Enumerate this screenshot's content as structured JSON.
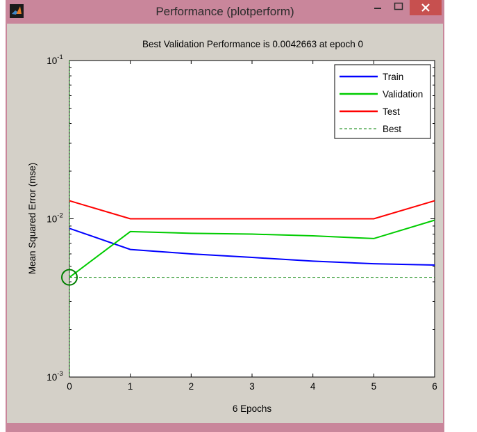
{
  "window": {
    "title": "Performance (plotperform)",
    "icon": "matlab-logo-icon",
    "controls": [
      "minimize-icon",
      "maximize-icon",
      "close-icon"
    ]
  },
  "colors": {
    "titlebar": "#c9869b",
    "close_button": "#c7504f",
    "figure_background": "#d4d0c8",
    "axes_background": "#ffffff"
  },
  "chart_data": {
    "type": "line",
    "title": "Best Validation Performance is 0.0042663 at epoch 0",
    "xlabel": "6 Epochs",
    "ylabel": "Mean Squared Error  (mse)",
    "xlim": [
      0,
      6
    ],
    "ylim": [
      0.001,
      0.1
    ],
    "yscale": "log",
    "x_ticks": [
      "0",
      "1",
      "2",
      "3",
      "4",
      "5",
      "6"
    ],
    "y_ticks": [
      {
        "base": "10",
        "exp": "-3",
        "value": 0.001
      },
      {
        "base": "10",
        "exp": "-2",
        "value": 0.01
      },
      {
        "base": "10",
        "exp": "-1",
        "value": 0.1
      }
    ],
    "grid": false,
    "legend_position": "top-right",
    "x": [
      0,
      1,
      2,
      3,
      4,
      5,
      6
    ],
    "series": [
      {
        "name": "Train",
        "color": "#0000ff",
        "style": "solid",
        "values": [
          0.0087,
          0.0064,
          0.006,
          0.0057,
          0.0054,
          0.0052,
          0.0051
        ]
      },
      {
        "name": "Validation",
        "color": "#00cc00",
        "style": "solid",
        "values": [
          0.0042663,
          0.0083,
          0.0081,
          0.008,
          0.0078,
          0.0075,
          0.0098
        ]
      },
      {
        "name": "Test",
        "color": "#ff0000",
        "style": "solid",
        "values": [
          0.013,
          0.01,
          0.01,
          0.01,
          0.01,
          0.01,
          0.013
        ]
      },
      {
        "name": "Best",
        "color": "#008000",
        "style": "dashed",
        "values": [
          0.0042663,
          0.0042663,
          0.0042663,
          0.0042663,
          0.0042663,
          0.0042663,
          0.0042663
        ]
      }
    ],
    "best_marker": {
      "x": 0,
      "y": 0.0042663,
      "color": "#008000"
    }
  }
}
